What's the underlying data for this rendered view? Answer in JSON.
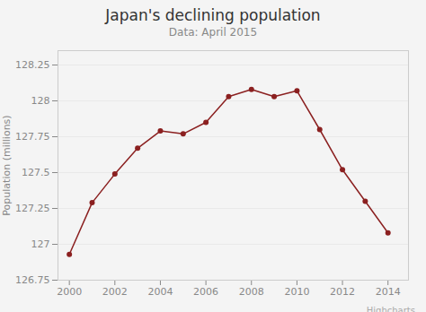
{
  "chart_data": {
    "type": "line",
    "title": "Japan's declining population",
    "subtitle": "Data: April 2015",
    "ylabel": "Population (millions)",
    "x": [
      2000,
      2001,
      2002,
      2003,
      2004,
      2005,
      2006,
      2007,
      2008,
      2009,
      2010,
      2011,
      2012,
      2013,
      2014
    ],
    "values": [
      126.93,
      127.29,
      127.49,
      127.67,
      127.79,
      127.77,
      127.85,
      128.03,
      128.08,
      128.03,
      128.07,
      127.8,
      127.52,
      127.3,
      127.08
    ],
    "color": "#8b2020",
    "marker": "circle",
    "xlim": [
      1999.5,
      2014.9
    ],
    "xticks": [
      2000,
      2002,
      2004,
      2006,
      2008,
      2010,
      2012,
      2014
    ],
    "ylim": [
      126.75,
      128.35
    ],
    "yticks": [
      126.75,
      127,
      127.25,
      127.5,
      127.75,
      128,
      128.25
    ],
    "grid": "y",
    "annotations": [
      "Highcharts"
    ]
  }
}
